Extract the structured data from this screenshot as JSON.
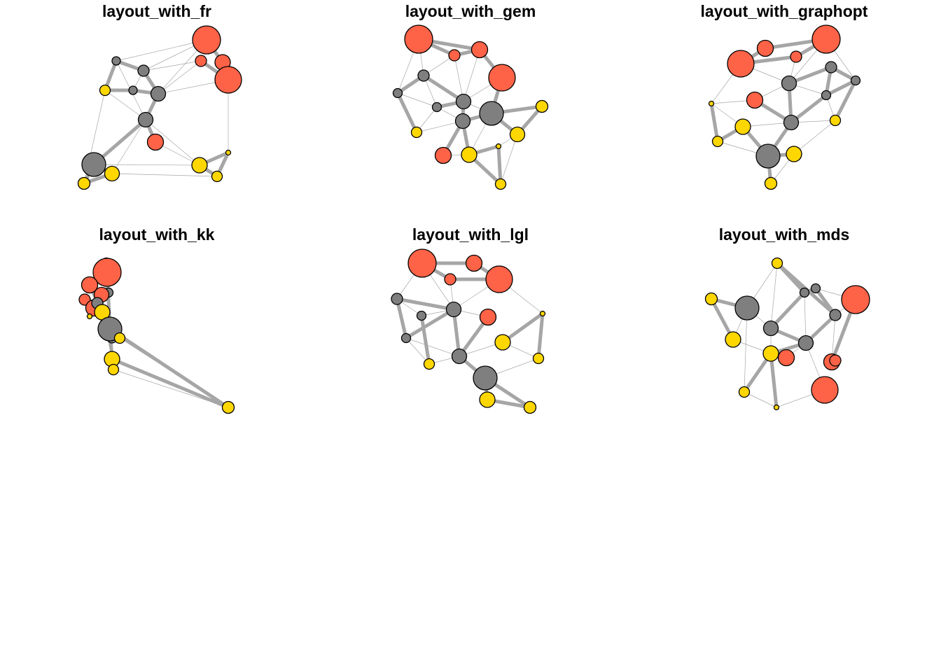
{
  "panels": [
    {
      "title": "layout_with_fr"
    },
    {
      "title": "layout_with_gem"
    },
    {
      "title": "layout_with_graphopt"
    },
    {
      "title": "layout_with_kk"
    },
    {
      "title": "layout_with_lgl"
    },
    {
      "title": "layout_with_mds"
    }
  ],
  "colors": {
    "background": "#ffffff",
    "edge": "#a6a6a6",
    "node_outline": "#000000",
    "red": "#ff6347",
    "gray": "#7f7f7f",
    "gold": "#ffd700"
  }
}
